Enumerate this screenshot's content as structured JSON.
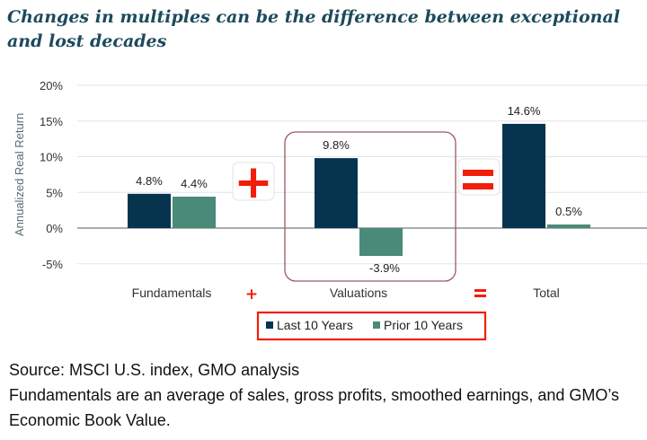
{
  "title": "Changes in multiples can be the difference between exceptional and lost decades",
  "chart_data": {
    "type": "bar",
    "categories": [
      "Fundamentals",
      "Valuations",
      "Total"
    ],
    "series": [
      {
        "name": "Last 10 Years",
        "values": [
          4.8,
          9.8,
          14.6
        ],
        "color": "#06344f"
      },
      {
        "name": "Prior 10 Years",
        "values": [
          4.4,
          -3.9,
          0.5
        ],
        "color": "#4a8a78"
      }
    ],
    "data_labels": [
      [
        "4.8%",
        "9.8%",
        "14.6%"
      ],
      [
        "4.4%",
        "-3.9%",
        "0.5%"
      ]
    ],
    "ylabel": "Annualized Real Return",
    "ylim": [
      -5,
      20
    ],
    "yticks": [
      20,
      15,
      10,
      5,
      0,
      -5
    ],
    "ytick_labels": [
      "20%",
      "15%",
      "10%",
      "5%",
      "0%",
      "-5%"
    ],
    "grid": true,
    "legend_position": "bottom-center",
    "annotations": {
      "plus": "+",
      "equals": "=",
      "accent": "#f21d0a",
      "highlight_box": "#9b5a60"
    }
  },
  "source": "Source: MSCI U.S. index, GMO analysis",
  "note": "Fundamentals are an average of sales, gross profits, smoothed earnings, and GMO’s Economic Book Value."
}
